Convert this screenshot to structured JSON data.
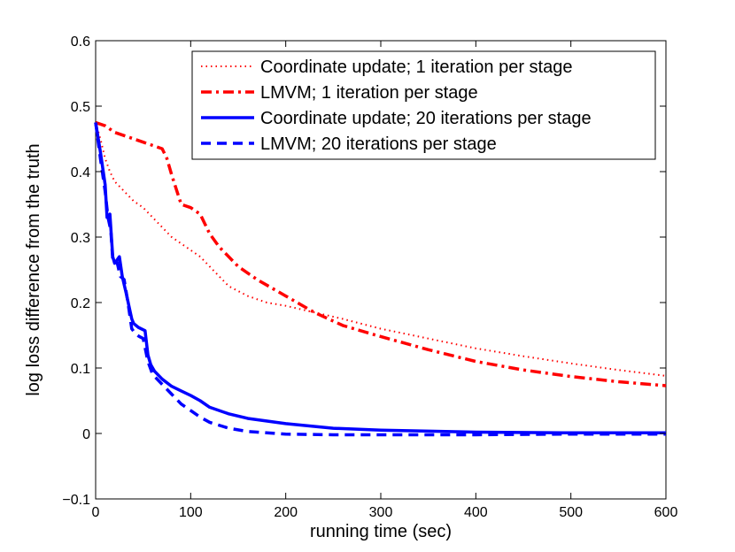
{
  "chart_data": {
    "type": "line",
    "xlabel": "running time (sec)",
    "ylabel": "log loss difference from the truth",
    "xlim": [
      0,
      600
    ],
    "ylim": [
      -0.1,
      0.6
    ],
    "xticks": [
      0,
      100,
      200,
      300,
      400,
      500,
      600
    ],
    "xtick_labels": [
      "0",
      "100",
      "200",
      "300",
      "400",
      "500",
      "600"
    ],
    "yticks": [
      -0.1,
      0,
      0.1,
      0.2,
      0.3,
      0.4,
      0.5,
      0.6
    ],
    "ytick_labels": [
      "−0.1",
      "0",
      "0.1",
      "0.2",
      "0.3",
      "0.4",
      "0.5",
      "0.6"
    ],
    "grid": false,
    "legend_position": "top-right",
    "series": [
      {
        "name": "Coordinate update; 1 iteration per stage",
        "color": "#ff0000",
        "style": "dotted",
        "x": [
          0,
          5,
          10,
          15,
          20,
          30,
          40,
          50,
          60,
          70,
          80,
          90,
          100,
          110,
          120,
          130,
          140,
          160,
          180,
          200,
          230,
          260,
          300,
          350,
          400,
          450,
          500,
          550,
          600
        ],
        "y": [
          0.475,
          0.45,
          0.42,
          0.4,
          0.385,
          0.37,
          0.355,
          0.345,
          0.33,
          0.315,
          0.3,
          0.29,
          0.28,
          0.27,
          0.255,
          0.24,
          0.225,
          0.21,
          0.2,
          0.195,
          0.185,
          0.175,
          0.16,
          0.145,
          0.13,
          0.118,
          0.107,
          0.097,
          0.088
        ]
      },
      {
        "name": "LMVM; 1 iteration per stage",
        "color": "#ff0000",
        "style": "dashdot",
        "x": [
          0,
          10,
          20,
          30,
          40,
          50,
          60,
          70,
          75,
          80,
          90,
          100,
          110,
          120,
          130,
          150,
          170,
          200,
          230,
          260,
          300,
          350,
          400,
          450,
          500,
          550,
          600
        ],
        "y": [
          0.475,
          0.47,
          0.46,
          0.455,
          0.45,
          0.445,
          0.44,
          0.435,
          0.42,
          0.395,
          0.35,
          0.345,
          0.335,
          0.305,
          0.285,
          0.255,
          0.235,
          0.21,
          0.185,
          0.165,
          0.148,
          0.128,
          0.11,
          0.097,
          0.087,
          0.079,
          0.073
        ]
      },
      {
        "name": "Coordinate update; 20 iterations per stage",
        "color": "#0000ff",
        "style": "solid",
        "x": [
          0,
          5,
          10,
          12,
          15,
          18,
          20,
          25,
          28,
          32,
          35,
          38,
          40,
          45,
          52,
          55,
          58,
          62,
          70,
          80,
          90,
          100,
          110,
          120,
          140,
          160,
          200,
          250,
          300,
          400,
          500,
          600
        ],
        "y": [
          0.475,
          0.43,
          0.38,
          0.33,
          0.335,
          0.27,
          0.26,
          0.27,
          0.24,
          0.215,
          0.195,
          0.175,
          0.168,
          0.162,
          0.157,
          0.12,
          0.105,
          0.095,
          0.083,
          0.072,
          0.065,
          0.058,
          0.05,
          0.04,
          0.03,
          0.023,
          0.015,
          0.008,
          0.005,
          0.002,
          0.001,
          0.001
        ]
      },
      {
        "name": "LMVM; 20 iterations per stage",
        "color": "#0000ff",
        "style": "dashed",
        "x": [
          0,
          5,
          10,
          13,
          16,
          18,
          22,
          26,
          30,
          34,
          38,
          42,
          46,
          50,
          55,
          60,
          70,
          80,
          90,
          100,
          110,
          120,
          140,
          160,
          200,
          250,
          300,
          400,
          500,
          600
        ],
        "y": [
          0.475,
          0.42,
          0.37,
          0.33,
          0.31,
          0.265,
          0.265,
          0.24,
          0.235,
          0.2,
          0.16,
          0.152,
          0.148,
          0.145,
          0.11,
          0.09,
          0.075,
          0.06,
          0.045,
          0.035,
          0.025,
          0.017,
          0.008,
          0.003,
          -0.001,
          -0.002,
          -0.002,
          -0.002,
          -0.001,
          -0.001
        ]
      }
    ]
  }
}
